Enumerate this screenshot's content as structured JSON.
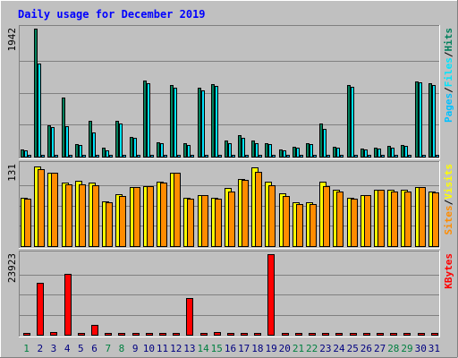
{
  "chart_data": [
    {
      "type": "bar",
      "title": "Daily usage for December 2019",
      "panel": "hits-files-pages",
      "y_max_label": "1942",
      "side_labels": [
        "Pages",
        "Files",
        "Hits"
      ],
      "categories": [
        "1",
        "2",
        "3",
        "4",
        "5",
        "6",
        "7",
        "8",
        "9",
        "10",
        "11",
        "12",
        "13",
        "14",
        "15",
        "16",
        "17",
        "18",
        "19",
        "20",
        "21",
        "22",
        "23",
        "24",
        "25",
        "26",
        "27",
        "28",
        "29",
        "30",
        "31"
      ],
      "ylim": [
        0,
        1942
      ],
      "series": [
        {
          "name": "Hits",
          "values": [
            105,
            1942,
            470,
            890,
            190,
            540,
            130,
            540,
            300,
            1160,
            220,
            1080,
            200,
            1050,
            1100,
            250,
            320,
            240,
            200,
            110,
            150,
            200,
            500,
            150,
            1080,
            120,
            140,
            160,
            170,
            1140,
            1110
          ]
        },
        {
          "name": "Files",
          "values": [
            95,
            1410,
            450,
            460,
            170,
            360,
            100,
            500,
            280,
            1120,
            200,
            1040,
            170,
            1010,
            1070,
            200,
            290,
            200,
            190,
            100,
            130,
            190,
            420,
            140,
            1060,
            110,
            120,
            140,
            160,
            1130,
            1080
          ]
        },
        {
          "name": "Pages",
          "values": [
            0,
            0,
            0,
            0,
            0,
            0,
            0,
            0,
            0,
            0,
            0,
            0,
            0,
            0,
            0,
            0,
            0,
            0,
            0,
            0,
            0,
            0,
            0,
            0,
            0,
            0,
            0,
            0,
            0,
            0,
            0
          ]
        }
      ]
    },
    {
      "type": "bar",
      "panel": "visits-sites",
      "y_max_label": "131",
      "side_labels": [
        "Sites",
        "Visits"
      ],
      "categories": [
        "1",
        "2",
        "3",
        "4",
        "5",
        "6",
        "7",
        "8",
        "9",
        "10",
        "11",
        "12",
        "13",
        "14",
        "15",
        "16",
        "17",
        "18",
        "19",
        "20",
        "21",
        "22",
        "23",
        "24",
        "25",
        "26",
        "27",
        "28",
        "29",
        "30",
        "31"
      ],
      "ylim": [
        0,
        131
      ],
      "series": [
        {
          "name": "Visits",
          "values": [
            78,
            128,
            118,
            102,
            105,
            102,
            72,
            83,
            95,
            97,
            103,
            118,
            78,
            82,
            78,
            93,
            108,
            126,
            104,
            85,
            70,
            70,
            104,
            91,
            78,
            82,
            90,
            90,
            90,
            95,
            88
          ]
        },
        {
          "name": "Sites",
          "values": [
            77,
            124,
            118,
            100,
            100,
            98,
            70,
            80,
            95,
            97,
            102,
            118,
            76,
            82,
            76,
            88,
            107,
            120,
            98,
            80,
            68,
            68,
            96,
            88,
            76,
            82,
            90,
            88,
            88,
            95,
            87
          ]
        }
      ]
    },
    {
      "type": "bar",
      "panel": "kbytes",
      "y_max_label": "23923",
      "side_labels": [
        "KBytes"
      ],
      "categories": [
        "1",
        "2",
        "3",
        "4",
        "5",
        "6",
        "7",
        "8",
        "9",
        "10",
        "11",
        "12",
        "13",
        "14",
        "15",
        "16",
        "17",
        "18",
        "19",
        "20",
        "21",
        "22",
        "23",
        "24",
        "25",
        "26",
        "27",
        "28",
        "29",
        "30",
        "31"
      ],
      "ylim": [
        0,
        23923
      ],
      "series": [
        {
          "name": "KBytes",
          "values": [
            300,
            15500,
            900,
            18000,
            600,
            2900,
            400,
            350,
            250,
            400,
            500,
            500,
            11000,
            500,
            700,
            600,
            400,
            400,
            23923,
            400,
            250,
            250,
            200,
            350,
            600,
            300,
            250,
            300,
            250,
            400,
            400
          ]
        }
      ],
      "weekend_days": [
        "1",
        "7",
        "8",
        "14",
        "15",
        "21",
        "22",
        "28",
        "29"
      ]
    }
  ],
  "colors": {
    "background": "#c0c0c0",
    "title": "#0000ff",
    "hits": "#00805c",
    "files": "#00e4fc",
    "pages": "#00c0ff",
    "visits": "#ffff00",
    "sites": "#ff8c00",
    "kbytes": "#ff0000",
    "weekend_tick": "#008040",
    "weekday_tick": "#000080"
  }
}
